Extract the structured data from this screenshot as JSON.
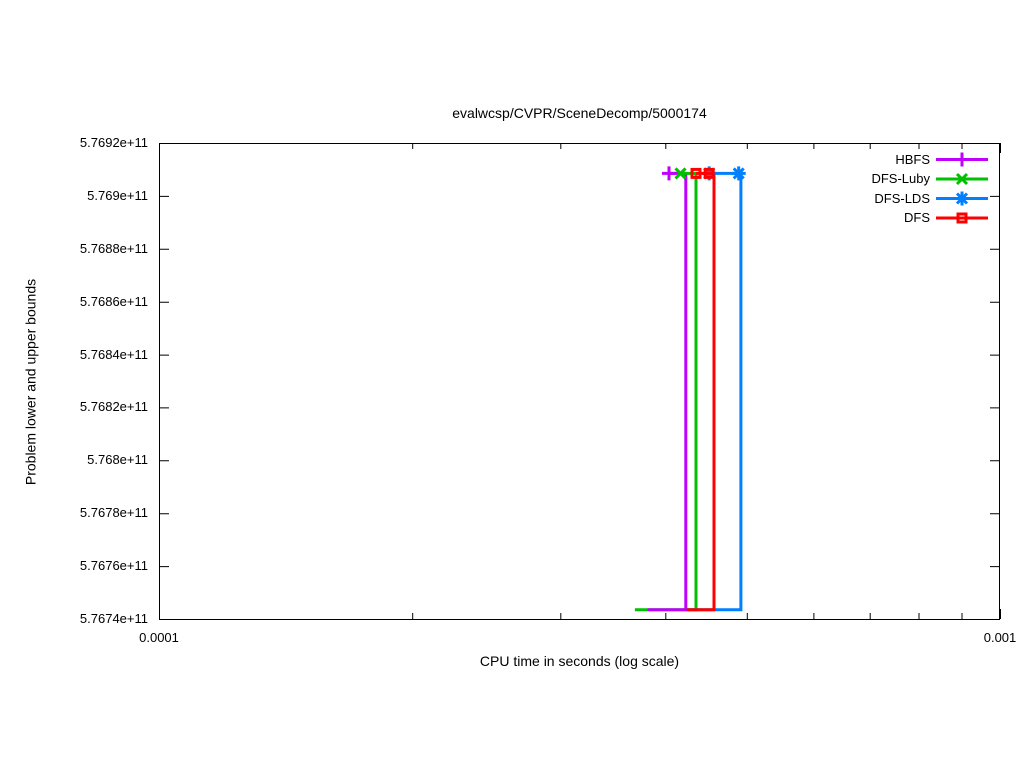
{
  "title": "evalwcsp/CVPR/SceneDecomp/5000174",
  "axes": {
    "x": {
      "label": "CPU time in seconds (log scale)",
      "scale": "log",
      "min": 0.0001,
      "max": 0.001,
      "major_ticks": [
        {
          "value": 0.0001,
          "label": "0.0001"
        },
        {
          "value": 0.001,
          "label": "0.001"
        }
      ],
      "minor_ticks": [
        0.0002,
        0.0003,
        0.0004,
        0.0005,
        0.0006,
        0.0007,
        0.0008,
        0.0009
      ]
    },
    "y": {
      "label": "Problem lower and upper bounds",
      "scale": "linear",
      "min": 576740000000,
      "max": 576920000000,
      "ticks": [
        {
          "value": 576920000000,
          "label": "5.7692e+11"
        },
        {
          "value": 576900000000,
          "label": "5.769e+11"
        },
        {
          "value": 576880000000,
          "label": "5.7688e+11"
        },
        {
          "value": 576860000000,
          "label": "5.7686e+11"
        },
        {
          "value": 576840000000,
          "label": "5.7684e+11"
        },
        {
          "value": 576820000000,
          "label": "5.7682e+11"
        },
        {
          "value": 576800000000,
          "label": "5.768e+11"
        },
        {
          "value": 576780000000,
          "label": "5.7678e+11"
        },
        {
          "value": 576760000000,
          "label": "5.7676e+11"
        },
        {
          "value": 576740000000,
          "label": "5.7674e+11"
        }
      ]
    }
  },
  "chart_data": {
    "type": "line",
    "title": "evalwcsp/CVPR/SceneDecomp/5000174",
    "xlabel": "CPU time in seconds (log scale)",
    "ylabel": "Problem lower and upper bounds",
    "xlim": [
      0.0001,
      0.001
    ],
    "ylim": [
      576740000000,
      576920000000
    ],
    "grid": false,
    "legend_position": "top-right-inside",
    "upper_bound_value": 576908500000,
    "lower_bound_value": 576743500000,
    "series": [
      {
        "name": "HBFS",
        "color": "#c000ff",
        "marker": "plus",
        "solution_times": [
          0.000404
        ],
        "upper_line": [
          [
            0.000404,
            576908500000
          ],
          [
            0.000423,
            576908500000
          ]
        ],
        "lower_line": [
          [
            0.000381,
            576743500000
          ],
          [
            0.000423,
            576743500000
          ],
          [
            0.000423,
            576908500000
          ]
        ]
      },
      {
        "name": "DFS-Luby",
        "color": "#00c000",
        "marker": "cross",
        "solution_times": [
          0.000417
        ],
        "upper_line": [
          [
            0.000417,
            576908500000
          ],
          [
            0.000435,
            576908500000
          ]
        ],
        "lower_line": [
          [
            0.000368,
            576743500000
          ],
          [
            0.000435,
            576743500000
          ],
          [
            0.000435,
            576908500000
          ]
        ]
      },
      {
        "name": "DFS-LDS",
        "color": "#0080ff",
        "marker": "asterisk",
        "solution_times": [
          0.000451,
          0.000489
        ],
        "upper_line": [
          [
            0.000451,
            576908500000
          ],
          [
            0.000492,
            576908500000
          ]
        ],
        "lower_line": [
          [
            0.000424,
            576743500000
          ],
          [
            0.000492,
            576743500000
          ],
          [
            0.000492,
            576908500000
          ]
        ]
      },
      {
        "name": "DFS",
        "color": "#ff0000",
        "marker": "square-open",
        "solution_times": [
          0.000435,
          0.000451
        ],
        "upper_line": [
          [
            0.000435,
            576908500000
          ],
          [
            0.000457,
            576908500000
          ]
        ],
        "lower_line": [
          [
            0.000424,
            576743500000
          ],
          [
            0.000457,
            576743500000
          ],
          [
            0.000457,
            576908500000
          ]
        ]
      }
    ],
    "lower_draw_order": [
      "DFS-Luby",
      "HBFS",
      "DFS-LDS",
      "DFS"
    ],
    "upper_draw_order": [
      "HBFS",
      "DFS-Luby",
      "DFS-LDS",
      "DFS"
    ]
  }
}
